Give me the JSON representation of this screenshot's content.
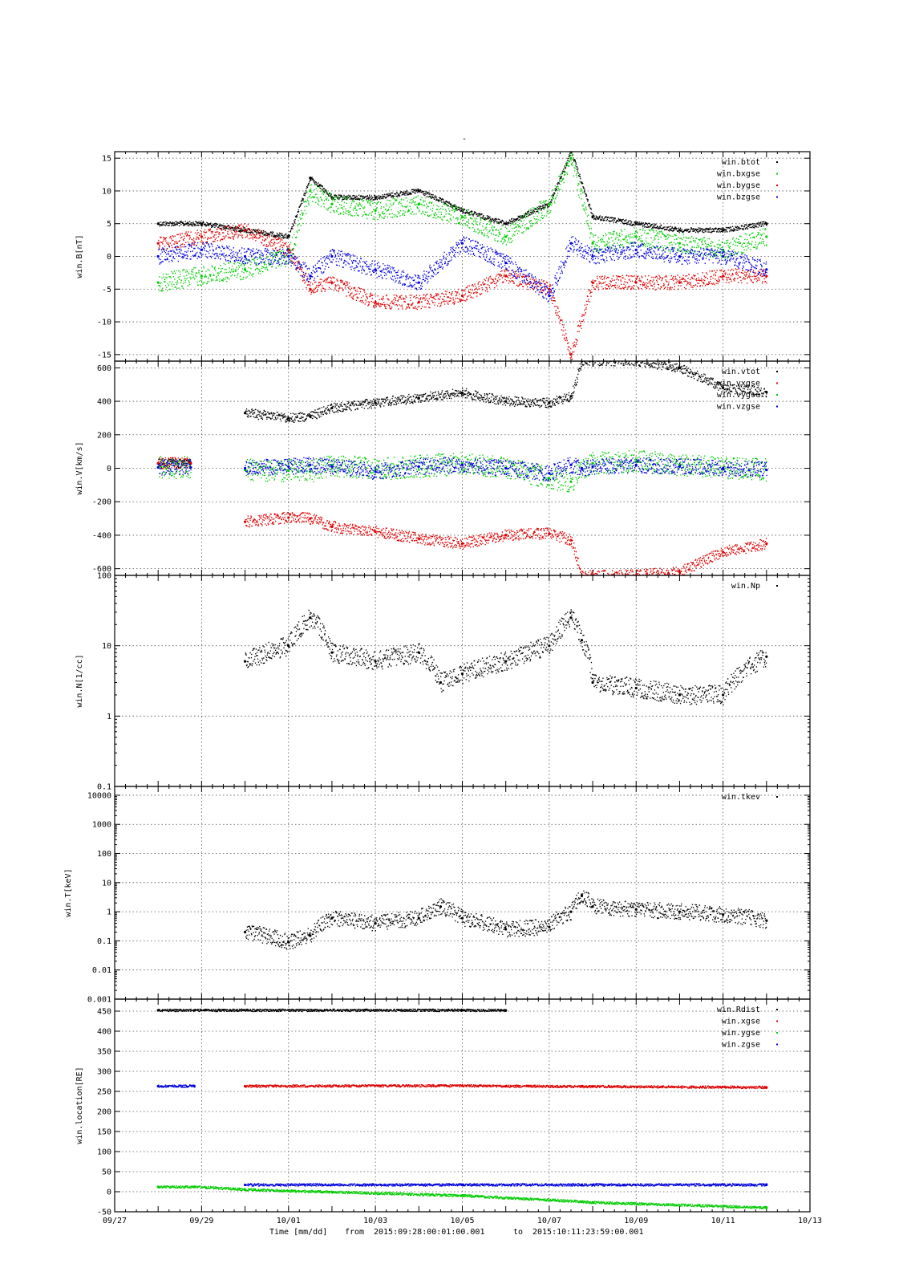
{
  "figure": {
    "title": "-",
    "footer": {
      "time_label": "Time [mm/dd]",
      "from_label": "from",
      "from_value": "2015:09:28:00:01:00.001",
      "to_label": "to",
      "to_value": "2015:10:11:23:59:00.001"
    },
    "x_axis": {
      "start": "2015-09-27",
      "end": "2015-10-13",
      "ticks": [
        "09/27",
        "09/29",
        "10/01",
        "10/03",
        "10/05",
        "10/07",
        "10/09",
        "10/11",
        "10/13"
      ]
    }
  },
  "chart_data": [
    {
      "type": "scatter",
      "ylabel": "win.B[nT]",
      "ylim": [
        -16,
        16
      ],
      "yticks": [
        -15,
        -10,
        -5,
        0,
        5,
        10,
        15
      ],
      "grid": true,
      "legend": "top-right",
      "series": [
        {
          "name": "win.btot",
          "color": "#000000",
          "x": [
            "2015-09-28",
            "2015-09-29",
            "2015-09-30",
            "2015-10-01",
            "2015-10-01T12:00",
            "2015-10-02",
            "2015-10-03",
            "2015-10-04",
            "2015-10-05",
            "2015-10-06",
            "2015-10-07",
            "2015-10-07T12:00",
            "2015-10-08",
            "2015-10-09",
            "2015-10-10",
            "2015-10-11",
            "2015-10-12"
          ],
          "y": [
            5,
            5,
            4,
            3,
            12,
            9,
            9,
            10,
            7,
            5,
            8,
            16,
            6,
            5,
            4,
            4,
            5
          ]
        },
        {
          "name": "win.bxgse",
          "color": "#00cc00",
          "x": [
            "2015-09-28",
            "2015-09-29",
            "2015-09-30",
            "2015-10-01",
            "2015-10-01T12:00",
            "2015-10-02",
            "2015-10-03",
            "2015-10-04",
            "2015-10-05",
            "2015-10-06",
            "2015-10-07",
            "2015-10-07T12:00",
            "2015-10-08",
            "2015-10-09",
            "2015-10-10",
            "2015-10-11",
            "2015-10-12"
          ],
          "y": [
            -4,
            -3,
            -2,
            0,
            10,
            8,
            7,
            8,
            6,
            3,
            8,
            15,
            2,
            3,
            2,
            1,
            3
          ]
        },
        {
          "name": "win.bygse",
          "color": "#dd0000",
          "x": [
            "2015-09-28",
            "2015-09-29",
            "2015-09-30",
            "2015-10-01",
            "2015-10-01T12:00",
            "2015-10-02",
            "2015-10-03",
            "2015-10-04",
            "2015-10-05",
            "2015-10-06",
            "2015-10-07",
            "2015-10-07T12:00",
            "2015-10-08",
            "2015-10-09",
            "2015-10-10",
            "2015-10-11",
            "2015-10-12"
          ],
          "y": [
            2,
            3,
            4,
            1,
            -5,
            -4,
            -7,
            -7,
            -6,
            -3,
            -5,
            -15,
            -4,
            -4,
            -4,
            -3,
            -3
          ]
        },
        {
          "name": "win.bzgse",
          "color": "#0000dd",
          "x": [
            "2015-09-28",
            "2015-09-29",
            "2015-09-30",
            "2015-10-01",
            "2015-10-01T12:00",
            "2015-10-02",
            "2015-10-03",
            "2015-10-04",
            "2015-10-05",
            "2015-10-06",
            "2015-10-07",
            "2015-10-07T12:00",
            "2015-10-08",
            "2015-10-09",
            "2015-10-10",
            "2015-10-11",
            "2015-10-12"
          ],
          "y": [
            0,
            1,
            0,
            0,
            -3,
            0,
            -2,
            -4,
            2,
            -1,
            -6,
            2,
            0,
            1,
            0,
            0,
            -2
          ]
        }
      ]
    },
    {
      "type": "scatter",
      "ylabel": "win.V[km/s]",
      "ylim": [
        -640,
        640
      ],
      "yticks": [
        -600,
        -400,
        -200,
        0,
        200,
        400,
        600
      ],
      "grid": true,
      "legend": "top-right",
      "series": [
        {
          "name": "win.vtot",
          "color": "#000000",
          "x": [
            "2015-09-28",
            "2015-09-28T18:00",
            "2015-09-30",
            "2015-10-01",
            "2015-10-01T12:00",
            "2015-10-02",
            "2015-10-03",
            "2015-10-04",
            "2015-10-05",
            "2015-10-06",
            "2015-10-07",
            "2015-10-07T12:00",
            "2015-10-07T18:00",
            "2015-10-08",
            "2015-10-09",
            "2015-10-10",
            "2015-10-11",
            "2015-10-12"
          ],
          "y": [
            28,
            28,
            330,
            300,
            310,
            360,
            390,
            420,
            450,
            400,
            390,
            430,
            640,
            640,
            640,
            600,
            480,
            455
          ]
        },
        {
          "name": "win.vxgse",
          "color": "#dd0000",
          "x": [
            "2015-09-28",
            "2015-09-28T18:00",
            "2015-09-30",
            "2015-10-01",
            "2015-10-01T12:00",
            "2015-10-02",
            "2015-10-03",
            "2015-10-04",
            "2015-10-05",
            "2015-10-06",
            "2015-10-07",
            "2015-10-07T12:00",
            "2015-10-07T18:00",
            "2015-10-08",
            "2015-10-09",
            "2015-10-10",
            "2015-10-11",
            "2015-10-12"
          ],
          "y": [
            30,
            30,
            -320,
            -295,
            -300,
            -350,
            -380,
            -420,
            -450,
            -400,
            -390,
            -430,
            -640,
            -640,
            -640,
            -620,
            -500,
            -450
          ]
        },
        {
          "name": "win.vygse",
          "color": "#00cc00",
          "x": [
            "2015-09-28",
            "2015-09-28T18:00",
            "2015-09-30",
            "2015-10-01",
            "2015-10-01T12:00",
            "2015-10-02",
            "2015-10-03",
            "2015-10-04",
            "2015-10-05",
            "2015-10-06",
            "2015-10-07",
            "2015-10-07T12:00",
            "2015-10-07T18:00",
            "2015-10-08",
            "2015-10-09",
            "2015-10-10",
            "2015-10-11",
            "2015-10-12"
          ],
          "y": [
            5,
            5,
            -10,
            -15,
            -20,
            20,
            -10,
            10,
            30,
            0,
            -60,
            -80,
            0,
            30,
            40,
            20,
            0,
            -10
          ]
        },
        {
          "name": "win.vzgse",
          "color": "#0000dd",
          "x": [
            "2015-09-28",
            "2015-09-28T18:00",
            "2015-09-30",
            "2015-10-01",
            "2015-10-01T12:00",
            "2015-10-02",
            "2015-10-03",
            "2015-10-04",
            "2015-10-05",
            "2015-10-06",
            "2015-10-07",
            "2015-10-07T12:00",
            "2015-10-07T18:00",
            "2015-10-08",
            "2015-10-09",
            "2015-10-10",
            "2015-10-11",
            "2015-10-12"
          ],
          "y": [
            5,
            5,
            0,
            10,
            20,
            10,
            -20,
            10,
            20,
            0,
            -30,
            20,
            0,
            10,
            20,
            10,
            0,
            -10
          ]
        }
      ]
    },
    {
      "type": "scatter",
      "ylabel": "win.N[1/cc]",
      "ylog": true,
      "ylim": [
        0.1,
        100
      ],
      "yticks": [
        0.1,
        1,
        10,
        100
      ],
      "grid": true,
      "legend": "top-right",
      "series": [
        {
          "name": "win.Np",
          "color": "#000000",
          "x": [
            "2015-09-30",
            "2015-10-01",
            "2015-10-01T12:00",
            "2015-10-02",
            "2015-10-03",
            "2015-10-04",
            "2015-10-04T12:00",
            "2015-10-05",
            "2015-10-06",
            "2015-10-07",
            "2015-10-07T12:00",
            "2015-10-07T18:00",
            "2015-10-08",
            "2015-10-09",
            "2015-10-10",
            "2015-10-11",
            "2015-10-12"
          ],
          "y": [
            6,
            10,
            25,
            8,
            6,
            8,
            3,
            4,
            6,
            10,
            25,
            12,
            3,
            2.5,
            2,
            2,
            7
          ]
        }
      ]
    },
    {
      "type": "scatter",
      "ylabel": "win.T[keV]",
      "ylog": true,
      "ylim": [
        0.001,
        20000
      ],
      "yticks": [
        0.001,
        0.01,
        0.1,
        1,
        10,
        100,
        1000,
        10000
      ],
      "ytick_labels": [
        "0.001",
        "0.01",
        "0.1",
        "1",
        "10",
        "100",
        "1000",
        "10000"
      ],
      "grid": true,
      "legend": "top-right",
      "series": [
        {
          "name": "win.tkev",
          "color": "#000000",
          "x": [
            "2015-09-30",
            "2015-10-01",
            "2015-10-01T12:00",
            "2015-10-02",
            "2015-10-03",
            "2015-10-04",
            "2015-10-04T12:00",
            "2015-10-05",
            "2015-10-06",
            "2015-10-07",
            "2015-10-07T12:00",
            "2015-10-07T18:00",
            "2015-10-08",
            "2015-10-09",
            "2015-10-10",
            "2015-10-11",
            "2015-10-12"
          ],
          "y": [
            0.2,
            0.09,
            0.15,
            0.6,
            0.4,
            0.6,
            1.5,
            0.6,
            0.25,
            0.3,
            1.0,
            3.5,
            1.5,
            1.2,
            1.0,
            0.8,
            0.5
          ]
        }
      ]
    },
    {
      "type": "scatter",
      "ylabel": "win.location[RE]",
      "ylim": [
        -50,
        480
      ],
      "yticks": [
        -50,
        0,
        50,
        100,
        150,
        200,
        250,
        300,
        350,
        400,
        450
      ],
      "grid": true,
      "legend": "top-right",
      "series": [
        {
          "name": "win.Rdist",
          "color": "#000000",
          "x": [
            "2015-09-28",
            "2015-09-28T20:00",
            "2015-10-05",
            "2015-10-06"
          ],
          "y": [
            452,
            452,
            452,
            452
          ]
        },
        {
          "name": "win.xgse",
          "color": "#dd0000",
          "x": [
            "2015-09-30",
            "2015-10-05",
            "2015-10-06",
            "2015-10-07T18:00",
            "2015-10-08",
            "2015-10-12"
          ],
          "y": [
            263,
            264,
            263,
            262,
            262,
            260
          ]
        },
        {
          "name": "win.ygse",
          "color": "#00cc00",
          "x": [
            "2015-09-28",
            "2015-09-28T20:00",
            "2015-09-30",
            "2015-10-05",
            "2015-10-07T18:00",
            "2015-10-08",
            "2015-10-12"
          ],
          "y": [
            12,
            12,
            5,
            -10,
            -25,
            -27,
            -40
          ]
        },
        {
          "name": "win.zgse",
          "color": "#0000dd",
          "x": [
            "2015-09-28",
            "2015-09-28T20:00",
            "2015-09-30",
            "2015-10-05",
            "2015-10-07T18:00",
            "2015-10-08",
            "2015-10-12"
          ],
          "y": [
            263,
            263,
            17,
            17,
            17,
            17,
            17
          ]
        }
      ]
    }
  ]
}
